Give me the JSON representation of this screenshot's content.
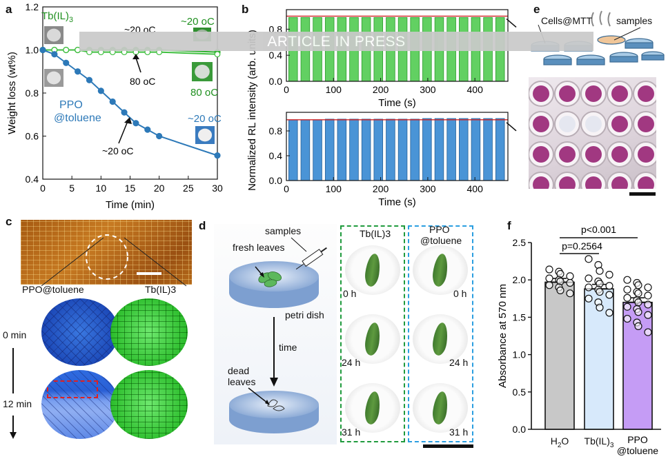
{
  "panels": {
    "a": "a",
    "b": "b",
    "c": "c",
    "d": "d",
    "e": "e",
    "f": "f"
  },
  "chart_data": [
    {
      "type": "line",
      "panel": "a",
      "xlabel": "Time (min)",
      "ylabel": "Weight loss (wt%)",
      "xlim": [
        0,
        30
      ],
      "ylim": [
        0.4,
        1.2
      ],
      "xticks": [
        "0",
        "5",
        "10",
        "15",
        "20",
        "25",
        "30"
      ],
      "yticks": [
        "0.4",
        "0.6",
        "0.8",
        "1.0",
        "1.2"
      ],
      "series": [
        {
          "name": "Tb(IL)3",
          "color": "#2db12d",
          "x": [
            0,
            2,
            4,
            6,
            8,
            10,
            12,
            14,
            16,
            18,
            20,
            30
          ],
          "values": [
            1.0,
            1.0,
            1.0,
            1.0,
            1.0,
            1.0,
            1.0,
            1.0,
            1.0,
            1.0,
            1.0,
            0.99
          ]
        },
        {
          "name": "Tb(IL)3",
          "color": "#3fbf3f",
          "x": [
            0,
            2,
            4,
            6,
            8,
            10,
            12,
            14,
            16,
            18,
            20,
            30
          ],
          "values": [
            1.0,
            1.0,
            1.0,
            1.0,
            0.99,
            0.99,
            0.99,
            0.99,
            0.99,
            0.99,
            0.99,
            0.98
          ]
        },
        {
          "name": "PPO @toluene",
          "color": "#2d79b8",
          "x": [
            0,
            2,
            4,
            6,
            8,
            10,
            12,
            14,
            16,
            18,
            20,
            30
          ],
          "values": [
            1.0,
            0.98,
            0.94,
            0.9,
            0.86,
            0.81,
            0.76,
            0.71,
            0.66,
            0.63,
            0.6,
            0.51
          ]
        }
      ],
      "annotations": [
        "Tb(IL)3",
        "~20 oC",
        "~20 oC",
        "80 oC",
        "80 oC",
        "PPO",
        "@toluene",
        "~20 oC",
        "~20 oC"
      ]
    },
    {
      "type": "bar",
      "panel": "b-top",
      "xlabel": "Time (s)",
      "ylabel": "Normalized RL intensity (arb. units)",
      "xlim": [
        0,
        470
      ],
      "ylim": [
        0,
        1.1
      ],
      "xticks": [
        "0",
        "100",
        "200",
        "300",
        "400"
      ],
      "yticks": [
        "0.0",
        "0.4",
        "0.8"
      ],
      "pulses": 18,
      "values": [
        0.98,
        0.98,
        0.98,
        0.98,
        0.98,
        0.98,
        0.98,
        0.98,
        0.98,
        0.98,
        0.98,
        0.98,
        0.98,
        0.98,
        0.98,
        0.98,
        0.98,
        0.98
      ],
      "reference": 1.0
    },
    {
      "type": "bar",
      "panel": "b-bottom",
      "xlabel": "Time (s)",
      "xlim": [
        0,
        470
      ],
      "ylim": [
        0,
        1.1
      ],
      "xticks": [
        "0",
        "100",
        "200",
        "300",
        "400"
      ],
      "yticks": [
        "0.0",
        "0.4",
        "0.8"
      ],
      "pulses": 18,
      "values": [
        0.98,
        0.98,
        0.98,
        0.99,
        0.99,
        0.99,
        0.99,
        0.99,
        0.99,
        0.99,
        0.99,
        1.0,
        1.0,
        1.0,
        1.0,
        1.0,
        1.0,
        1.0
      ],
      "reference": 0.98
    },
    {
      "type": "bar",
      "panel": "f",
      "ylabel": "Absorbance at 570 nm",
      "ylim": [
        0,
        2.5
      ],
      "yticks": [
        "0.0",
        "0.5",
        "1.0",
        "1.5",
        "2.0",
        "2.5"
      ],
      "categories": [
        "H2O",
        "Tb(IL)3",
        "PPO @toluene"
      ],
      "values": [
        1.97,
        1.88,
        1.7
      ],
      "errors": [
        0.05,
        0.06,
        0.06
      ],
      "colors": [
        "#c8c8c8",
        "#d7e9fb",
        "#c59cf5"
      ],
      "points": [
        [
          2.14,
          2.11,
          2.08,
          2.05,
          2.02,
          2.0,
          1.98,
          1.96,
          1.93,
          1.9,
          1.86,
          1.82
        ],
        [
          2.28,
          2.2,
          2.12,
          2.07,
          2.02,
          1.98,
          1.95,
          1.92,
          1.9,
          1.87,
          1.84,
          1.8,
          1.75,
          1.7,
          1.63,
          1.56
        ],
        [
          2.0,
          1.96,
          1.93,
          1.9,
          1.87,
          1.84,
          1.82,
          1.79,
          1.76,
          1.73,
          1.7,
          1.67,
          1.64,
          1.61,
          1.57,
          1.53,
          1.48,
          1.43,
          1.38,
          1.3
        ]
      ],
      "significance": [
        "p=0.2564",
        "p<0.001"
      ]
    }
  ],
  "panel_c": {
    "label1": "PPO@toluene",
    "label2": "Tb(IL)3",
    "time0": "0 min",
    "time1": "12 min"
  },
  "panel_d": {
    "samples": "samples",
    "fresh": "fresh leaves",
    "petri": "petri dish",
    "time": "time",
    "dead1": "dead",
    "dead2": "leaves",
    "col1": "Tb(IL)3",
    "col2a": "PPO",
    "col2b": "@toluene",
    "t0": "0 h",
    "t1": "24 h",
    "t2": "31 h"
  },
  "panel_e": {
    "cells": "Cells@MTT",
    "samples": "samples"
  },
  "watermark": "ARTICLE IN PRESS"
}
